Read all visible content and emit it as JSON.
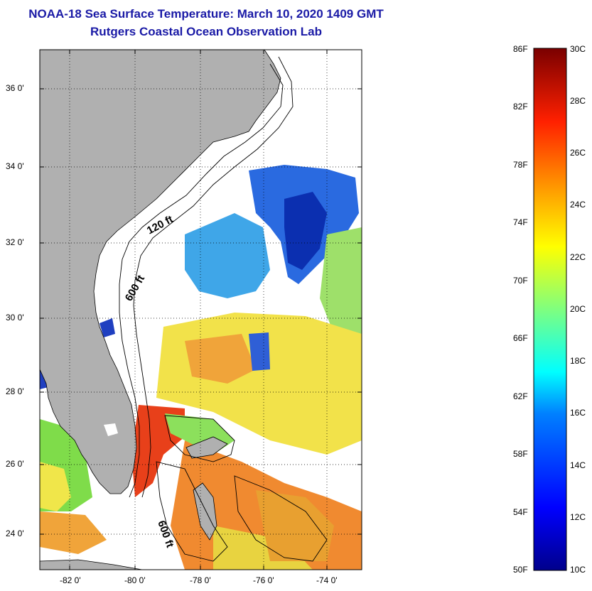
{
  "title_line1": "NOAA-18 Sea Surface Temperature:  March 10, 2020 1409 GMT",
  "title_line2": "Rutgers Coastal Ocean Observation Lab",
  "axes": {
    "lat_labels": [
      "36 0'",
      "34 0'",
      "32 0'",
      "30 0'",
      "28 0'",
      "26 0'",
      "24 0'"
    ],
    "lon_labels": [
      "-82 0'",
      "-80 0'",
      "-78 0'",
      "-76 0'",
      "-74 0'"
    ]
  },
  "contours": {
    "label_120": "120 ft",
    "label_600_north": "600 ft",
    "label_600_south": "600 ft"
  },
  "colorbar": {
    "fahrenheit": [
      "86F",
      "82F",
      "78F",
      "74F",
      "70F",
      "66F",
      "62F",
      "58F",
      "54F",
      "50F"
    ],
    "celsius": [
      "30C",
      "28C",
      "26C",
      "24C",
      "22C",
      "20C",
      "18C",
      "16C",
      "14C",
      "12C",
      "10C"
    ]
  },
  "colors": {
    "land": "#b0b0b0",
    "title": "#1a1aa6",
    "cold": "#0000a0",
    "warm": "#8b0000"
  }
}
